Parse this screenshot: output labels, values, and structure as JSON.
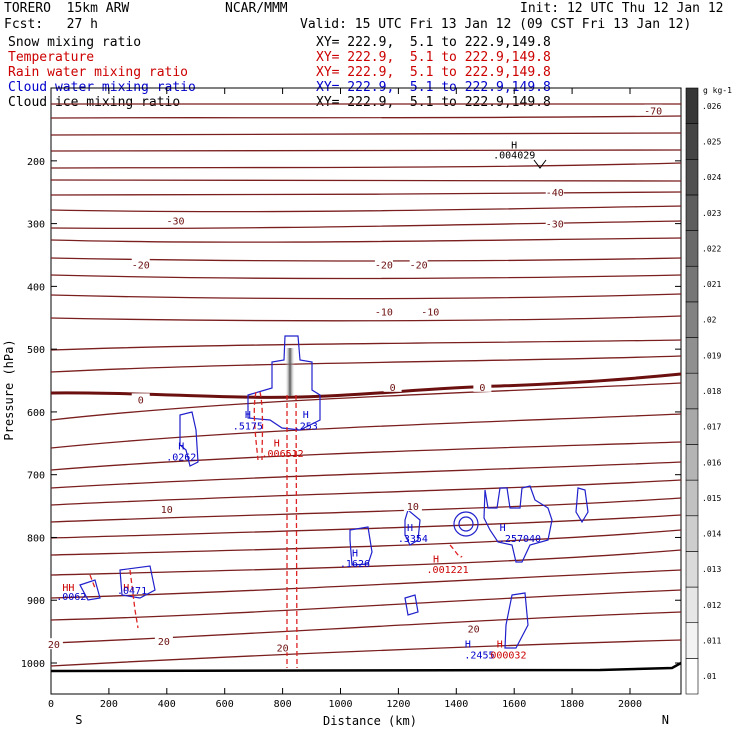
{
  "header": {
    "model": "TORERO  15km ARW",
    "org": "NCAR/MMM",
    "init": "Init: 12 UTC Thu 12 Jan 12",
    "fcst": "Fcst:   27 h",
    "valid": "Valid: 15 UTC Fri 13 Jan 12 (09 CST Fri 13 Jan 12)"
  },
  "fields": [
    {
      "name": "Snow mixing ratio",
      "xy": "XY= 222.9,  5.1 to 222.9,149.8",
      "color": "#000000"
    },
    {
      "name": "Temperature",
      "xy": "XY= 222.9,  5.1 to 222.9,149.8",
      "color": "#cc0000"
    },
    {
      "name": "Rain water mixing ratio",
      "xy": "XY= 222.9,  5.1 to 222.9,149.8",
      "color": "#cc0000"
    },
    {
      "name": "Cloud water mixing ratio",
      "xy": "XY= 222.9,  5.1 to 222.9,149.8",
      "color": "#0000cc"
    },
    {
      "name": "Cloud ice mixing ratio",
      "xy": "XY= 222.9,  5.1 to 222.9,149.8",
      "color": "#000000"
    }
  ],
  "chart_data": {
    "type": "contour-cross-section",
    "xlabel": "Distance (km)",
    "ylabel": "Pressure (hPa)",
    "xlim": [
      0,
      2180
    ],
    "ylim": [
      1050,
      100
    ],
    "x_ticks": [
      0,
      200,
      400,
      600,
      800,
      1000,
      1200,
      1400,
      1600,
      1800,
      2000
    ],
    "y_ticks": [
      200,
      300,
      400,
      500,
      600,
      700,
      800,
      900,
      1000
    ],
    "x_end_labels": {
      "left": "S",
      "right": "N",
      "left_x": 200,
      "right_x": 2060
    },
    "colorbar": {
      "unit": "g kg-1",
      "levels": [
        ".01",
        ".011",
        ".012",
        ".013",
        ".014",
        ".015",
        ".016",
        ".017",
        ".018",
        ".019",
        ".02",
        ".021",
        ".022",
        ".023",
        ".024",
        ".025",
        ".026"
      ]
    },
    "temperature_labels": [
      {
        "text": "-70",
        "x": 2080,
        "p": 120
      },
      {
        "text": "-40",
        "x": 1740,
        "p": 250
      },
      {
        "text": "-30",
        "x": 1740,
        "p": 300
      },
      {
        "text": "-30",
        "x": 430,
        "p": 295
      },
      {
        "text": "-20",
        "x": 310,
        "p": 365
      },
      {
        "text": "-20",
        "x": 1150,
        "p": 365
      },
      {
        "text": "-20",
        "x": 1270,
        "p": 365
      },
      {
        "text": "-10",
        "x": 1150,
        "p": 440
      },
      {
        "text": "-10",
        "x": 1310,
        "p": 440
      },
      {
        "text": "0",
        "x": 310,
        "p": 580
      },
      {
        "text": "0",
        "x": 1180,
        "p": 560
      },
      {
        "text": "0",
        "x": 1490,
        "p": 560
      },
      {
        "text": "10",
        "x": 400,
        "p": 755
      },
      {
        "text": "10",
        "x": 1250,
        "p": 750
      },
      {
        "text": "20",
        "x": 390,
        "p": 965
      },
      {
        "text": "20",
        "x": 10,
        "p": 970
      },
      {
        "text": "20",
        "x": 800,
        "p": 975
      },
      {
        "text": "20",
        "x": 1460,
        "p": 945
      }
    ],
    "maxima_labels": [
      {
        "text": "H",
        "x": 1600,
        "p": 180,
        "color": "#000000"
      },
      {
        "text": ".004029",
        "x": 1600,
        "p": 196,
        "color": "#000000"
      },
      {
        "text": "H",
        "x": 680,
        "p": 610,
        "color": "#0000cc"
      },
      {
        "text": ".5175",
        "x": 680,
        "p": 628,
        "color": "#0000cc"
      },
      {
        "text": "H",
        "x": 880,
        "p": 610,
        "color": "#0000cc"
      },
      {
        "text": ".253",
        "x": 880,
        "p": 628,
        "color": "#0000cc"
      },
      {
        "text": "H",
        "x": 780,
        "p": 655,
        "color": "#cc0000"
      },
      {
        "text": ".006512",
        "x": 800,
        "p": 672,
        "color": "#cc0000"
      },
      {
        "text": "H",
        "x": 450,
        "p": 660,
        "color": "#0000cc"
      },
      {
        "text": ".0262",
        "x": 450,
        "p": 677,
        "color": "#0000cc"
      },
      {
        "text": "H",
        "x": 1050,
        "p": 830,
        "color": "#0000cc"
      },
      {
        "text": ".1626",
        "x": 1050,
        "p": 847,
        "color": "#0000cc"
      },
      {
        "text": "H",
        "x": 1240,
        "p": 790,
        "color": "#0000cc"
      },
      {
        "text": ".3354",
        "x": 1250,
        "p": 807,
        "color": "#0000cc"
      },
      {
        "text": "H",
        "x": 1330,
        "p": 840,
        "color": "#cc0000"
      },
      {
        "text": ".001221",
        "x": 1370,
        "p": 857,
        "color": "#cc0000"
      },
      {
        "text": "H",
        "x": 1560,
        "p": 790,
        "color": "#0000cc"
      },
      {
        "text": ".257040",
        "x": 1620,
        "p": 807,
        "color": "#0000cc"
      },
      {
        "text": "HH",
        "x": 60,
        "p": 885,
        "color": "#cc0000"
      },
      {
        "text": ".0062",
        "x": 70,
        "p": 900,
        "color": "#0000cc"
      },
      {
        "text": "H",
        "x": 260,
        "p": 885,
        "color": "#cc0000"
      },
      {
        "text": ".0471",
        "x": 280,
        "p": 890,
        "color": "#0000cc"
      },
      {
        "text": "H",
        "x": 1440,
        "p": 975,
        "color": "#0000cc"
      },
      {
        "text": "H",
        "x": 1550,
        "p": 975,
        "color": "#cc0000"
      },
      {
        "text": ".2455",
        "x": 1480,
        "p": 993,
        "color": "#0000cc"
      },
      {
        "text": "000032",
        "x": 1580,
        "p": 993,
        "color": "#cc0000"
      }
    ]
  }
}
